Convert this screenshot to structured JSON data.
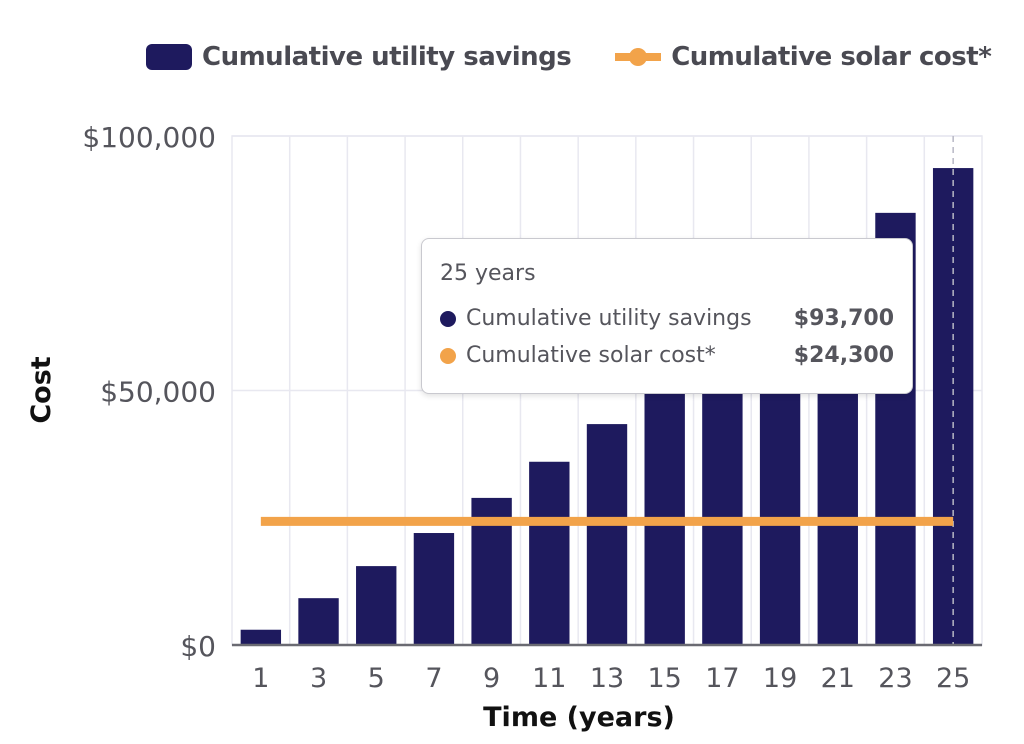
{
  "chart_data": {
    "type": "bar",
    "title": "",
    "xlabel": "Time (years)",
    "ylabel": "Cost",
    "ylim": [
      0,
      100000
    ],
    "yticks": [
      {
        "value": 0,
        "label": "$0"
      },
      {
        "value": 50000,
        "label": "$50,000"
      },
      {
        "value": 100000,
        "label": "$100,000"
      }
    ],
    "categories": [
      "1",
      "3",
      "5",
      "7",
      "9",
      "11",
      "13",
      "15",
      "17",
      "19",
      "21",
      "23",
      "25"
    ],
    "series": [
      {
        "name": "Cumulative utility savings",
        "type": "bar",
        "color": "#1e1a5e",
        "values": [
          3000,
          9200,
          15500,
          22000,
          28900,
          36000,
          43400,
          51000,
          59000,
          67500,
          76000,
          84900,
          93700
        ]
      },
      {
        "name": "Cumulative solar cost*",
        "type": "line",
        "color": "#f2a34a",
        "values": [
          24300,
          24300,
          24300,
          24300,
          24300,
          24300,
          24300,
          24300,
          24300,
          24300,
          24300,
          24300,
          24300
        ]
      }
    ],
    "grid": true,
    "legend_position": "top",
    "hover_category": "25"
  },
  "legend": [
    {
      "label": "Cumulative utility savings",
      "color": "#1e1a5e"
    },
    {
      "label": "Cumulative solar cost*",
      "color": "#f2a34a"
    }
  ],
  "tooltip": {
    "title": "25 years",
    "rows": [
      {
        "label": "Cumulative utility savings",
        "value": "$93,700",
        "color": "#1e1a5e"
      },
      {
        "label": "Cumulative solar cost*",
        "value": "$24,300",
        "color": "#f2a34a"
      }
    ]
  }
}
